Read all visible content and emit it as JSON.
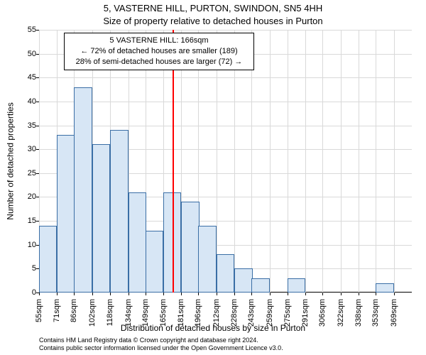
{
  "title": "5, VASTERNE HILL, PURTON, SWINDON, SN5 4HH",
  "subtitle": "Size of property relative to detached houses in Purton",
  "ylabel": "Number of detached properties",
  "xlabel": "Distribution of detached houses by size in Purton",
  "footer_line1": "Contains HM Land Registry data © Crown copyright and database right 2024.",
  "footer_line2": "Contains public sector information licensed under the Open Government Licence v3.0.",
  "annotation": {
    "line1": "5 VASTERNE HILL: 166sqm",
    "line2": "← 72% of detached houses are smaller (189)",
    "line3": "28% of semi-detached houses are larger (72) →"
  },
  "chart": {
    "type": "histogram",
    "background_color": "#ffffff",
    "grid_color": "#d9d9d9",
    "bar_fill": "#d7e6f5",
    "bar_border": "#3a6ea5",
    "marker_color": "#ff0000",
    "marker_x": 166,
    "xlim": [
      47,
      377
    ],
    "ylim": [
      0,
      55
    ],
    "ytick_step": 5,
    "bin_width": 16,
    "bins": [
      {
        "x": 55,
        "count": 14
      },
      {
        "x": 71,
        "count": 33
      },
      {
        "x": 86,
        "count": 43
      },
      {
        "x": 102,
        "count": 31
      },
      {
        "x": 118,
        "count": 34
      },
      {
        "x": 134,
        "count": 21
      },
      {
        "x": 149,
        "count": 13
      },
      {
        "x": 165,
        "count": 21
      },
      {
        "x": 181,
        "count": 19
      },
      {
        "x": 196,
        "count": 14
      },
      {
        "x": 212,
        "count": 8
      },
      {
        "x": 228,
        "count": 5
      },
      {
        "x": 243,
        "count": 3
      },
      {
        "x": 259,
        "count": 0
      },
      {
        "x": 275,
        "count": 3
      },
      {
        "x": 291,
        "count": 0
      },
      {
        "x": 306,
        "count": 0
      },
      {
        "x": 322,
        "count": 0
      },
      {
        "x": 338,
        "count": 0
      },
      {
        "x": 353,
        "count": 2
      },
      {
        "x": 369,
        "count": 0
      }
    ],
    "xtick_labels": [
      "55sqm",
      "71sqm",
      "86sqm",
      "102sqm",
      "118sqm",
      "134sqm",
      "149sqm",
      "165sqm",
      "181sqm",
      "196sqm",
      "212sqm",
      "228sqm",
      "243sqm",
      "259sqm",
      "275sqm",
      "291sqm",
      "306sqm",
      "322sqm",
      "338sqm",
      "353sqm",
      "369sqm"
    ],
    "title_fontsize": 13,
    "label_fontsize": 12,
    "tick_fontsize": 11
  }
}
